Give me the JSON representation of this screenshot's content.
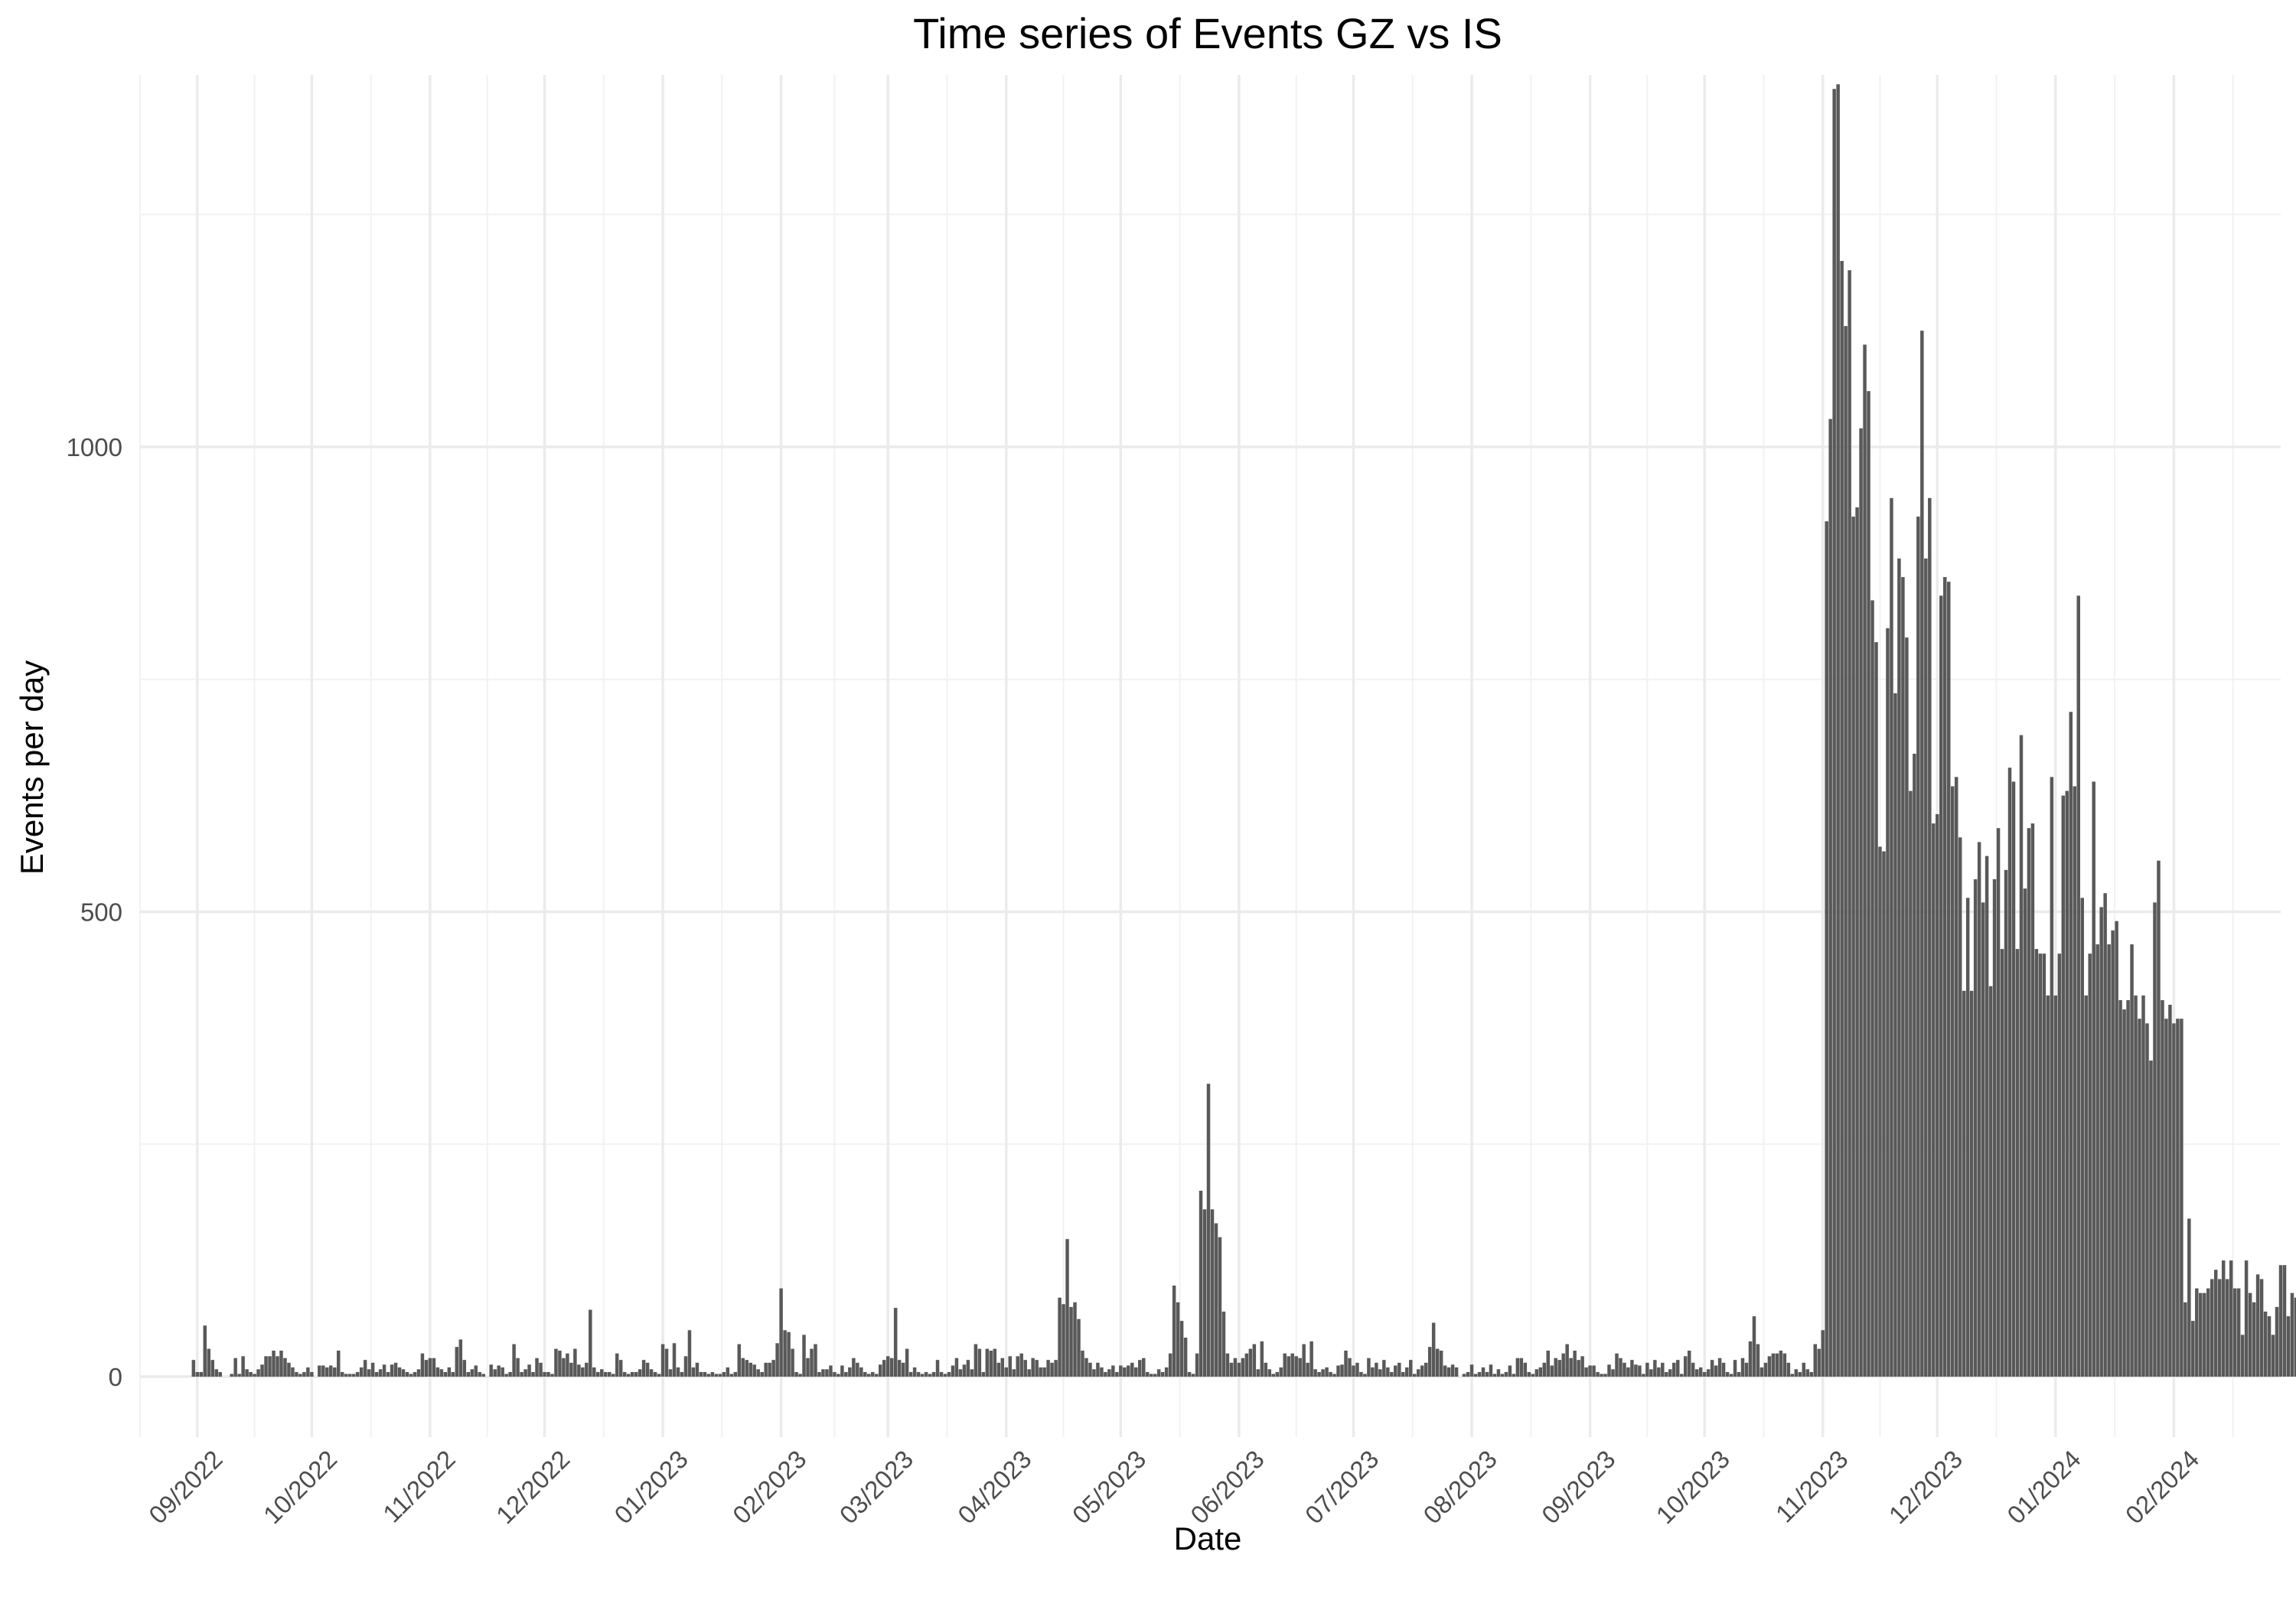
{
  "chart_data": {
    "type": "bar",
    "title": "Time series of Events GZ vs IS",
    "xlabel": "Date",
    "ylabel": "Events per day",
    "x_start": "2022-08-31",
    "x_end": "2024-02-15",
    "xlim": [
      "2022-08-17",
      "2024-02-29"
    ],
    "ylim": [
      -65,
      1400
    ],
    "y_ticks": [
      0,
      500,
      1000
    ],
    "x_tick_dates": [
      "2022-09-01",
      "2022-10-01",
      "2022-11-01",
      "2022-12-01",
      "2023-01-01",
      "2023-02-01",
      "2023-03-01",
      "2023-04-01",
      "2023-05-01",
      "2023-06-01",
      "2023-07-01",
      "2023-08-01",
      "2023-09-01",
      "2023-10-01",
      "2023-11-01",
      "2023-12-01",
      "2024-01-01",
      "2024-02-01"
    ],
    "x_tick_labels": [
      "09/2022",
      "10/2022",
      "11/2022",
      "12/2022",
      "01/2023",
      "02/2023",
      "03/2023",
      "04/2023",
      "05/2023",
      "06/2023",
      "07/2023",
      "08/2023",
      "09/2023",
      "10/2023",
      "11/2023",
      "12/2023",
      "01/2024",
      "02/2024"
    ],
    "grid": true,
    "bar_color": "#595959",
    "values": [
      18,
      5,
      5,
      55,
      30,
      18,
      8,
      5,
      0,
      0,
      3,
      20,
      3,
      22,
      8,
      5,
      3,
      8,
      13,
      22,
      22,
      28,
      22,
      28,
      20,
      15,
      10,
      5,
      3,
      5,
      10,
      5,
      0,
      12,
      12,
      10,
      12,
      10,
      28,
      5,
      3,
      3,
      3,
      5,
      10,
      18,
      8,
      15,
      5,
      8,
      13,
      5,
      13,
      15,
      10,
      8,
      5,
      3,
      5,
      8,
      25,
      18,
      20,
      20,
      10,
      8,
      5,
      10,
      5,
      32,
      40,
      18,
      5,
      8,
      12,
      5,
      3,
      0,
      13,
      8,
      12,
      10,
      3,
      5,
      35,
      20,
      5,
      8,
      13,
      5,
      20,
      15,
      5,
      5,
      3,
      30,
      28,
      20,
      25,
      15,
      30,
      13,
      10,
      15,
      72,
      10,
      5,
      8,
      5,
      5,
      3,
      25,
      18,
      5,
      3,
      5,
      5,
      8,
      18,
      15,
      8,
      5,
      3,
      35,
      30,
      8,
      36,
      10,
      5,
      22,
      50,
      10,
      15,
      5,
      5,
      3,
      5,
      3,
      3,
      5,
      10,
      3,
      5,
      35,
      20,
      18,
      15,
      13,
      8,
      5,
      15,
      15,
      18,
      36,
      95,
      50,
      48,
      30,
      5,
      3,
      45,
      20,
      30,
      35,
      5,
      8,
      8,
      12,
      5,
      3,
      12,
      5,
      10,
      20,
      15,
      10,
      5,
      3,
      5,
      3,
      13,
      18,
      22,
      20,
      74,
      18,
      15,
      30,
      5,
      10,
      5,
      3,
      5,
      3,
      5,
      18,
      5,
      3,
      5,
      12,
      20,
      8,
      13,
      18,
      8,
      35,
      30,
      5,
      30,
      28,
      30,
      15,
      20,
      10,
      22,
      8,
      22,
      25,
      18,
      8,
      20,
      18,
      10,
      10,
      18,
      15,
      18,
      85,
      78,
      148,
      75,
      80,
      62,
      28,
      20,
      15,
      8,
      15,
      10,
      5,
      8,
      12,
      5,
      12,
      10,
      12,
      15,
      10,
      18,
      20,
      5,
      3,
      3,
      8,
      5,
      10,
      25,
      98,
      80,
      60,
      42,
      5,
      3,
      25,
      200,
      180,
      315,
      180,
      165,
      150,
      70,
      25,
      15,
      20,
      15,
      20,
      25,
      30,
      35,
      8,
      38,
      15,
      8,
      3,
      5,
      10,
      25,
      22,
      25,
      22,
      20,
      35,
      15,
      38,
      8,
      5,
      8,
      10,
      5,
      3,
      12,
      13,
      28,
      20,
      12,
      15,
      5,
      3,
      20,
      10,
      15,
      8,
      18,
      10,
      5,
      12,
      15,
      5,
      10,
      18,
      3,
      8,
      12,
      15,
      32,
      58,
      30,
      28,
      12,
      10,
      13,
      10,
      0,
      3,
      5,
      13,
      3,
      5,
      10,
      5,
      13,
      3,
      8,
      3,
      5,
      12,
      3,
      20,
      20,
      15,
      5,
      3,
      8,
      10,
      15,
      28,
      12,
      20,
      18,
      25,
      35,
      20,
      28,
      18,
      22,
      10,
      12,
      12,
      5,
      3,
      3,
      13,
      8,
      25,
      20,
      15,
      10,
      18,
      13,
      12,
      3,
      15,
      8,
      18,
      10,
      15,
      5,
      8,
      15,
      18,
      3,
      22,
      28,
      15,
      8,
      10,
      5,
      8,
      18,
      12,
      20,
      15,
      5,
      3,
      18,
      5,
      20,
      15,
      38,
      65,
      35,
      10,
      15,
      22,
      25,
      25,
      28,
      25,
      15,
      3,
      8,
      5,
      15,
      8,
      5,
      35,
      30,
      50,
      920,
      1030,
      1385,
      1390,
      1200,
      1130,
      1190,
      925,
      935,
      1020,
      1110,
      1060,
      835,
      790,
      570,
      565,
      805,
      945,
      735,
      880,
      860,
      795,
      630,
      670,
      925,
      1125,
      880,
      945,
      595,
      605,
      840,
      860,
      855,
      635,
      645,
      580,
      415,
      515,
      415,
      535,
      575,
      510,
      560,
      420,
      535,
      590,
      460,
      545,
      655,
      640,
      460,
      690,
      525,
      590,
      595,
      460,
      455,
      455,
      410,
      645,
      410,
      455,
      625,
      630,
      715,
      635,
      840,
      515,
      410,
      455,
      640,
      465,
      505,
      520,
      465,
      480,
      490,
      405,
      395,
      405,
      465,
      410,
      385,
      410,
      380,
      340,
      510,
      555,
      405,
      385,
      400,
      380,
      385,
      385,
      80,
      170,
      60,
      95,
      90,
      90,
      95,
      105,
      115,
      105,
      125,
      105,
      125,
      95,
      95,
      45,
      125,
      90,
      80,
      110,
      105,
      70,
      65,
      45,
      75,
      120,
      120,
      65,
      90,
      85,
      5
    ]
  }
}
